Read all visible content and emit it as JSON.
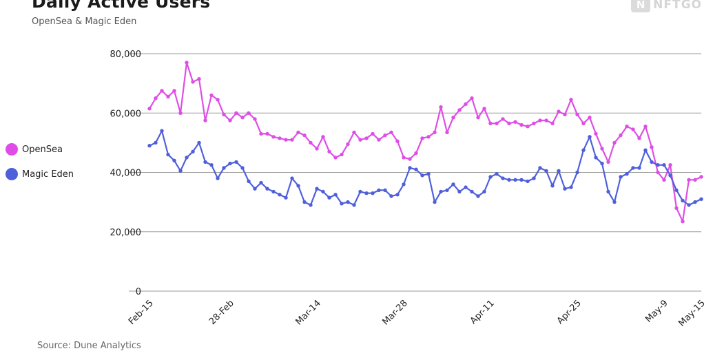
{
  "header": {
    "title": "Daily Active Users",
    "subtitle": "OpenSea & Magic Eden",
    "brand_mark": "N",
    "brand_text": "NFTGO"
  },
  "footer": {
    "source": "Source: Dune Analytics"
  },
  "chart_data": {
    "type": "line",
    "title": "Daily Active Users",
    "subtitle": "OpenSea & Magic Eden",
    "xlabel": "",
    "ylabel": "",
    "ylim": [
      0,
      80000
    ],
    "y_ticks": [
      0,
      20000,
      40000,
      60000,
      80000
    ],
    "y_tick_labels": [
      "0",
      "20,000",
      "40,000",
      "60,000",
      "80,000"
    ],
    "x_tick_labels": [
      "Feb-15",
      "28-Feb",
      "Mar-14",
      "Mar-28",
      "Apr-11",
      "Apr-25",
      "May-9",
      "May-15"
    ],
    "x_tick_indices": [
      0,
      13,
      27,
      41,
      55,
      69,
      83,
      89
    ],
    "grid": "horizontal",
    "legend": "left",
    "series": [
      {
        "name": "OpenSea",
        "color": "#de4ee6",
        "values": [
          61500,
          65000,
          67500,
          65500,
          67500,
          60000,
          77000,
          70500,
          71500,
          57500,
          66000,
          64500,
          59500,
          57500,
          60000,
          58500,
          60000,
          58000,
          53000,
          53000,
          52000,
          51500,
          51000,
          51000,
          53500,
          52500,
          50000,
          48000,
          52000,
          47000,
          45000,
          46000,
          49500,
          53500,
          51000,
          51500,
          53000,
          51000,
          52500,
          53500,
          50500,
          45000,
          44500,
          46500,
          51500,
          52000,
          53500,
          62000,
          53500,
          58500,
          61000,
          63000,
          65000,
          58500,
          61500,
          56500,
          56500,
          58000,
          56500,
          57000,
          56000,
          55500,
          56500,
          57500,
          57500,
          56500,
          60500,
          59500,
          64500,
          59500,
          56500,
          58500,
          53000,
          48000,
          43500,
          50000,
          52500,
          55500,
          54500,
          51500,
          55500,
          48500,
          40000,
          37500,
          42500,
          28000,
          23500,
          37500,
          37500,
          38500
        ]
      },
      {
        "name": "Magic Eden",
        "color": "#4f5fdc",
        "values": [
          49000,
          50000,
          54000,
          46000,
          44000,
          40500,
          45000,
          47000,
          50000,
          43500,
          42500,
          38000,
          41500,
          43000,
          43500,
          41500,
          37000,
          34500,
          36500,
          34500,
          33500,
          32500,
          31500,
          38000,
          35500,
          30000,
          29000,
          34500,
          33500,
          31500,
          32500,
          29500,
          30000,
          29000,
          33500,
          33000,
          33000,
          34000,
          34000,
          32000,
          32500,
          36000,
          41500,
          41000,
          39000,
          39500,
          30000,
          33500,
          34000,
          36000,
          33500,
          35000,
          33500,
          32000,
          33500,
          38500,
          39500,
          38000,
          37500,
          37500,
          37500,
          37000,
          38000,
          41500,
          40500,
          35500,
          40500,
          34500,
          35000,
          40000,
          47500,
          52000,
          45000,
          43000,
          33500,
          30000,
          38500,
          39500,
          41500,
          41500,
          47500,
          43500,
          42500,
          42500,
          39000,
          34000,
          30500,
          29000,
          30000,
          31000
        ]
      }
    ]
  }
}
